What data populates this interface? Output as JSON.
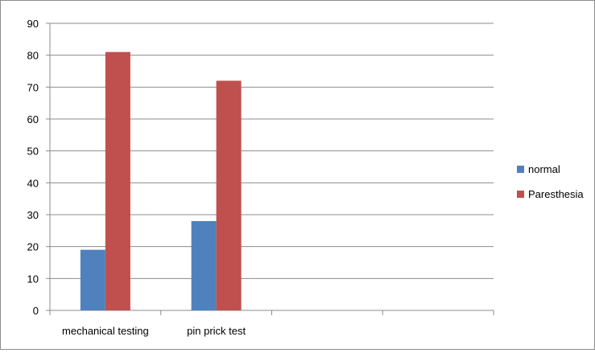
{
  "chart_data": {
    "type": "bar",
    "categories": [
      "mechanical testing",
      "pin prick test",
      "",
      ""
    ],
    "series": [
      {
        "name": "normal",
        "values": [
          19,
          28,
          null,
          null
        ],
        "color": "#4f81bd"
      },
      {
        "name": "Paresthesia",
        "values": [
          81,
          72,
          null,
          null
        ],
        "color": "#c0504d"
      }
    ],
    "ylim": [
      0,
      90
    ],
    "yticks": [
      0,
      10,
      20,
      30,
      40,
      50,
      60,
      70,
      80,
      90
    ],
    "grid": true,
    "legend_position": "right",
    "title": "",
    "xlabel": "",
    "ylabel": ""
  }
}
